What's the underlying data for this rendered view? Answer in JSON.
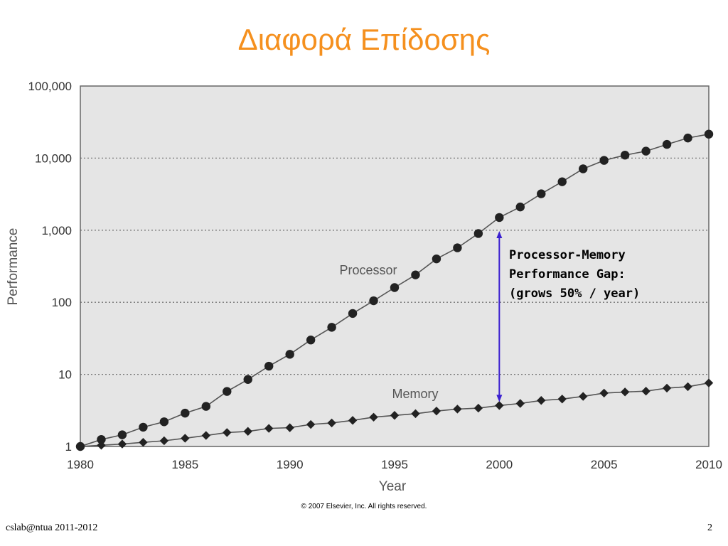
{
  "slide": {
    "title": "Διαφορά Επίδοσης",
    "footer_left": "cslab@ntua 2011-2012",
    "page_number": "2",
    "title_color": "#f5901e"
  },
  "annotation": {
    "lines": [
      "Processor-Memory",
      "Performance Gap:",
      "(grows 50% / year)"
    ],
    "arrow_year": 2000,
    "arrow_color": "#3a1fd0"
  },
  "chart_data": {
    "type": "line",
    "xlabel": "Year",
    "ylabel": "Performance",
    "yscale": "log",
    "xlim": [
      1980,
      2010
    ],
    "ylim": [
      1,
      100000
    ],
    "x_ticks": [
      1980,
      1985,
      1990,
      1995,
      2000,
      2005,
      2010
    ],
    "y_ticks": [
      1,
      10,
      100,
      1000,
      10000,
      100000
    ],
    "y_tick_labels": [
      "1",
      "10",
      "100",
      "1,000",
      "10,000",
      "100,000"
    ],
    "grid": "horizontal dotted",
    "copyright": "© 2007 Elsevier, Inc. All rights reserved.",
    "x": [
      1980,
      1981,
      1982,
      1983,
      1984,
      1985,
      1986,
      1987,
      1988,
      1989,
      1990,
      1991,
      1992,
      1993,
      1994,
      1995,
      1996,
      1997,
      1998,
      1999,
      2000,
      2001,
      2002,
      2003,
      2004,
      2005,
      2006,
      2007,
      2008,
      2009,
      2010
    ],
    "series": [
      {
        "name": "Processor",
        "marker": "circle",
        "values": [
          1,
          1.25,
          1.45,
          1.85,
          2.2,
          2.9,
          3.6,
          5.8,
          8.5,
          13,
          19,
          30,
          45,
          70,
          105,
          160,
          240,
          400,
          570,
          900,
          1500,
          2100,
          3200,
          4700,
          7100,
          9300,
          11000,
          12500,
          15500,
          19000,
          21500
        ]
      },
      {
        "name": "Memory",
        "marker": "diamond",
        "values": [
          1,
          1.04,
          1.08,
          1.14,
          1.2,
          1.3,
          1.42,
          1.56,
          1.62,
          1.78,
          1.82,
          2.02,
          2.12,
          2.3,
          2.55,
          2.7,
          2.85,
          3.1,
          3.3,
          3.4,
          3.7,
          3.95,
          4.35,
          4.55,
          4.95,
          5.5,
          5.7,
          5.85,
          6.45,
          6.75,
          7.6
        ]
      }
    ]
  }
}
